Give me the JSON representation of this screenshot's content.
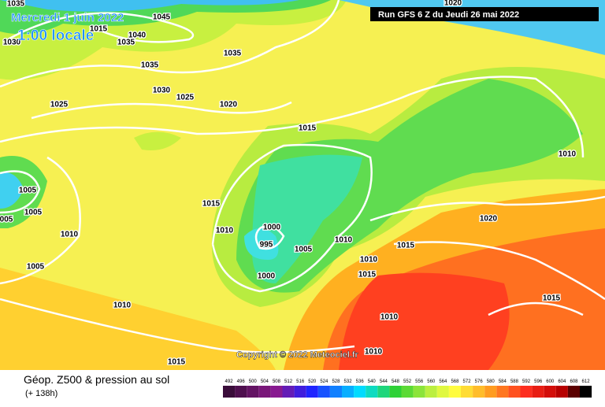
{
  "header": {
    "title": "Mercredi 1 juin 2022",
    "time": "1:00 locale",
    "run": "Run GFS 6 Z du Jeudi 26 mai 2022"
  },
  "map": {
    "isobar_labels": [
      "1035",
      "1045",
      "1015",
      "1040",
      "1030",
      "1035",
      "1035",
      "1035",
      "1030",
      "1025",
      "1025",
      "1020",
      "1015",
      "1010",
      "1005",
      "1005",
      "005",
      "1015",
      "1020",
      "1010",
      "1010",
      "1000",
      "995",
      "1005",
      "1010",
      "1015",
      "1010",
      "1015",
      "1005",
      "1000",
      "1015",
      "1010",
      "1010",
      "1010",
      "1015",
      "1020"
    ],
    "copyright": "Copyright © 2022 Meteociel.fr"
  },
  "footer": {
    "title": "Géop. Z500 & pression au sol",
    "lead": "(+ 138h)",
    "scale": [
      492,
      496,
      500,
      504,
      508,
      512,
      516,
      520,
      524,
      528,
      532,
      536,
      540,
      544,
      548,
      552,
      556,
      560,
      564,
      568,
      572,
      576,
      580,
      584,
      588,
      592,
      596,
      600,
      604,
      608,
      612
    ]
  }
}
